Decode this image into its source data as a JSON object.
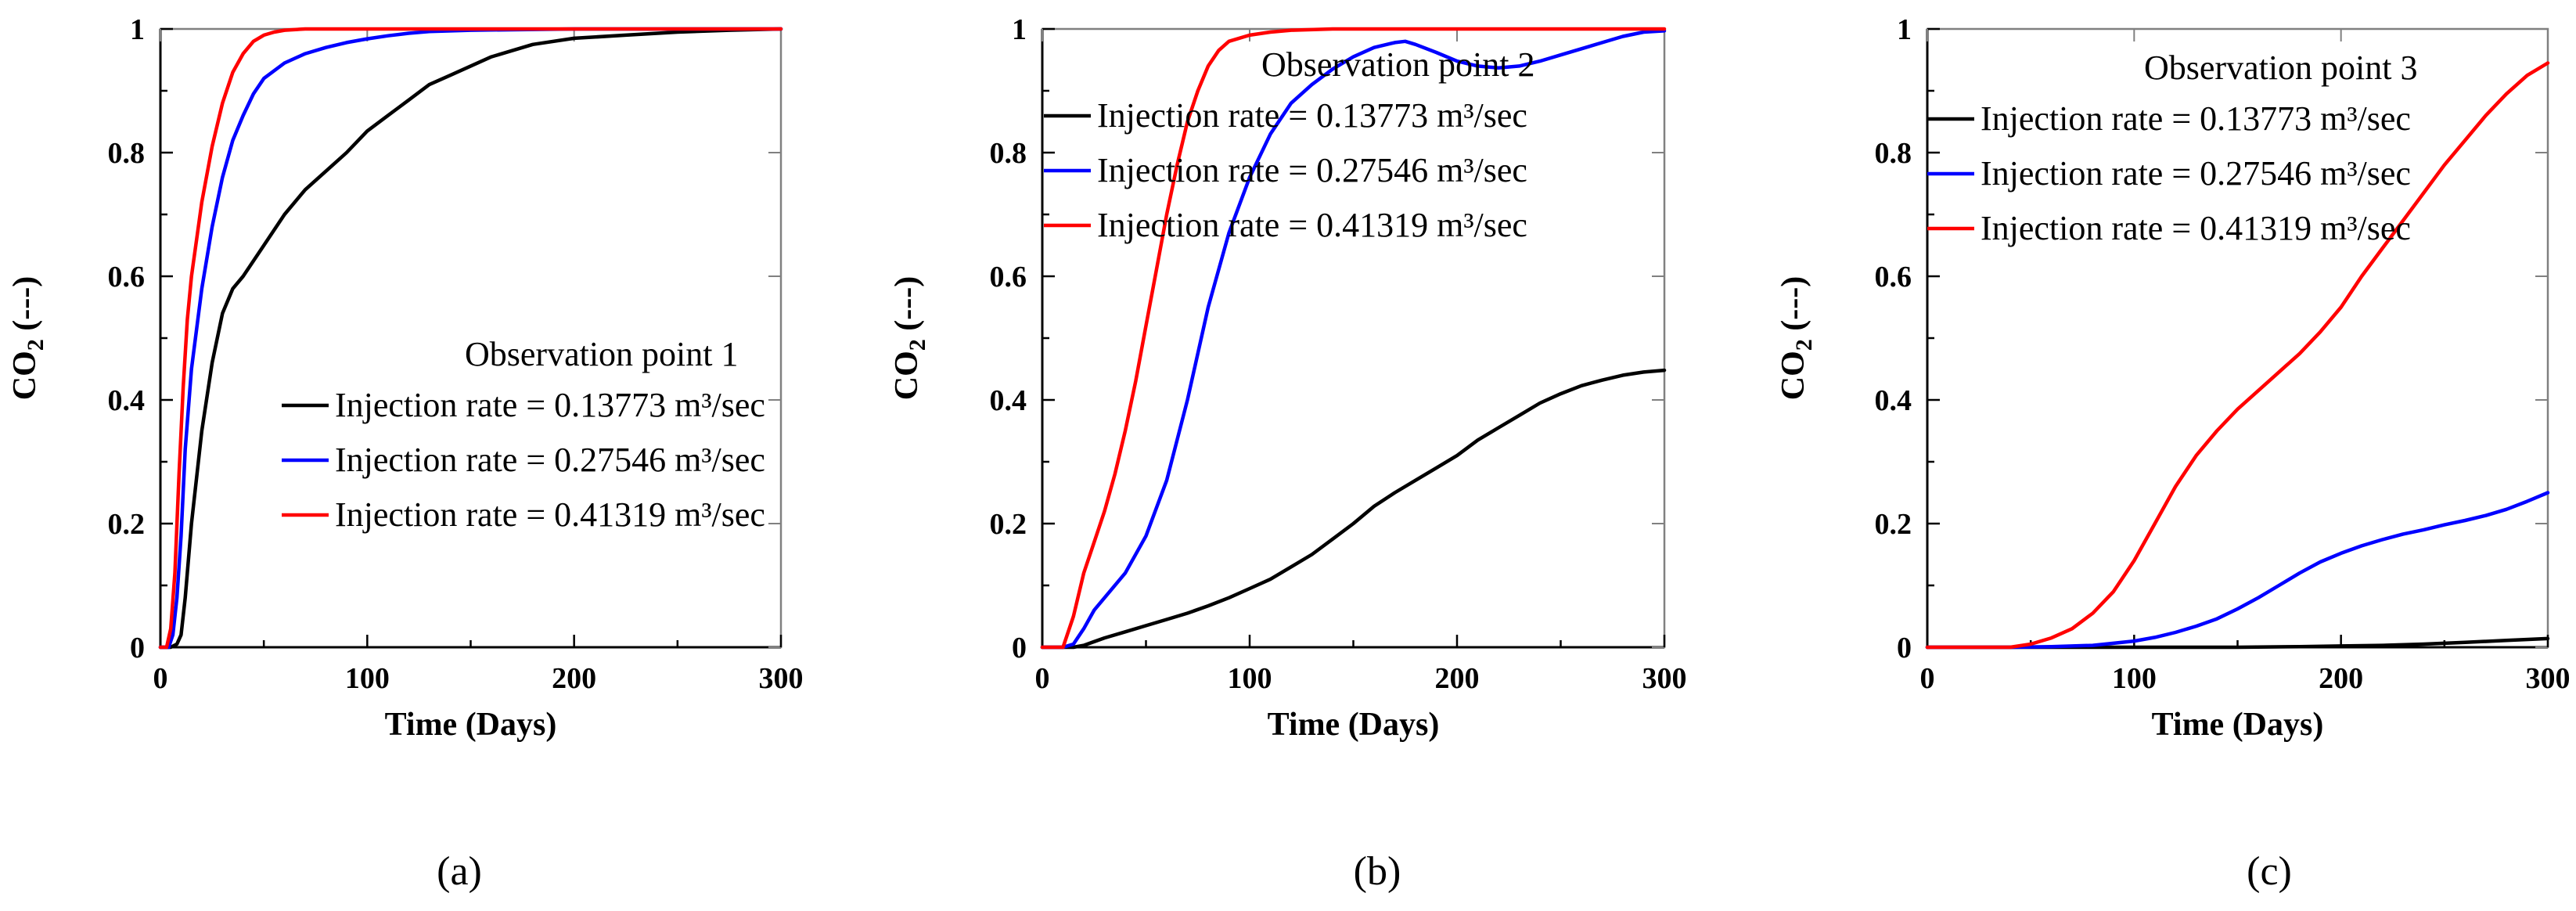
{
  "figure": {
    "captions": [
      "(a)",
      "(b)",
      "(c)"
    ]
  },
  "colors": {
    "low": "#000000",
    "mid": "#0000ff",
    "high": "#ff0000"
  },
  "chart_data": [
    {
      "type": "line",
      "panel": "a",
      "xlabel": "Time (Days)",
      "ylabel_main": "CO",
      "ylabel_sub": "2",
      "ylabel_suffix": " (---)",
      "xlim": [
        0,
        300
      ],
      "ylim": [
        0,
        1
      ],
      "xticks": [
        0,
        100,
        200,
        300
      ],
      "xtick_labels": [
        "0",
        "100",
        "200",
        "300"
      ],
      "yticks": [
        0,
        0.2,
        0.4,
        0.6,
        0.8,
        1
      ],
      "ytick_labels": [
        "0",
        "0.2",
        "0.4",
        "0.6",
        "0.8",
        "1"
      ],
      "legend": {
        "title": "Observation point 1",
        "placement": "center-right",
        "entries": [
          "Injection rate = 0.13773 m³/sec",
          "Injection rate = 0.27546 m³/sec",
          "Injection rate = 0.41319 m³/sec"
        ]
      },
      "series": [
        {
          "name": "Injection rate = 0.13773 m³/sec",
          "color": "#000000",
          "x": [
            0,
            5,
            8,
            10,
            12,
            15,
            20,
            25,
            30,
            35,
            40,
            50,
            60,
            70,
            80,
            90,
            100,
            110,
            120,
            130,
            140,
            150,
            160,
            180,
            200,
            225,
            250,
            275,
            300
          ],
          "y": [
            0,
            0,
            0.005,
            0.02,
            0.08,
            0.2,
            0.35,
            0.46,
            0.54,
            0.58,
            0.6,
            0.65,
            0.7,
            0.74,
            0.77,
            0.8,
            0.835,
            0.86,
            0.885,
            0.91,
            0.925,
            0.94,
            0.955,
            0.975,
            0.985,
            0.99,
            0.995,
            0.998,
            1.0
          ]
        },
        {
          "name": "Injection rate = 0.27546 m³/sec",
          "color": "#0000ff",
          "x": [
            0,
            4,
            6,
            8,
            10,
            12,
            15,
            20,
            25,
            30,
            35,
            40,
            45,
            50,
            60,
            70,
            80,
            90,
            100,
            110,
            120,
            130,
            150,
            200,
            300
          ],
          "y": [
            0,
            0,
            0.02,
            0.08,
            0.18,
            0.32,
            0.45,
            0.58,
            0.68,
            0.76,
            0.82,
            0.86,
            0.895,
            0.92,
            0.945,
            0.96,
            0.97,
            0.978,
            0.984,
            0.989,
            0.993,
            0.996,
            0.998,
            1.0,
            1.0
          ]
        },
        {
          "name": "Injection rate = 0.41319 m³/sec",
          "color": "#ff0000",
          "x": [
            0,
            3,
            5,
            7,
            9,
            11,
            13,
            15,
            20,
            25,
            30,
            35,
            40,
            45,
            50,
            55,
            60,
            70,
            80,
            100,
            150,
            300
          ],
          "y": [
            0,
            0,
            0.03,
            0.12,
            0.28,
            0.42,
            0.53,
            0.6,
            0.72,
            0.81,
            0.88,
            0.93,
            0.96,
            0.98,
            0.99,
            0.995,
            0.998,
            1.0,
            1.0,
            1.0,
            1.0,
            1.0
          ]
        }
      ]
    },
    {
      "type": "line",
      "panel": "b",
      "xlabel": "Time (Days)",
      "ylabel_main": "CO",
      "ylabel_sub": "2",
      "ylabel_suffix": " (---)",
      "xlim": [
        0,
        300
      ],
      "ylim": [
        0,
        1
      ],
      "xticks": [
        0,
        100,
        200,
        300
      ],
      "xtick_labels": [
        "0",
        "100",
        "200",
        "300"
      ],
      "yticks": [
        0,
        0.2,
        0.4,
        0.6,
        0.8,
        1
      ],
      "ytick_labels": [
        "0",
        "0.2",
        "0.4",
        "0.6",
        "0.8",
        "1"
      ],
      "legend": {
        "title": "Observation point 2",
        "placement": "top-right",
        "entries": [
          "Injection rate = 0.13773 m³/sec",
          "Injection rate = 0.27546 m³/sec",
          "Injection rate = 0.41319 m³/sec"
        ]
      },
      "series": [
        {
          "name": "Injection rate = 0.13773 m³/sec",
          "color": "#000000",
          "x": [
            0,
            10,
            15,
            20,
            30,
            40,
            50,
            60,
            70,
            80,
            90,
            100,
            110,
            120,
            130,
            140,
            150,
            160,
            170,
            180,
            190,
            200,
            210,
            220,
            230,
            240,
            250,
            260,
            270,
            280,
            290,
            300
          ],
          "y": [
            0,
            0,
            0,
            0.003,
            0.015,
            0.025,
            0.035,
            0.045,
            0.055,
            0.067,
            0.08,
            0.095,
            0.11,
            0.13,
            0.15,
            0.175,
            0.2,
            0.228,
            0.25,
            0.27,
            0.29,
            0.31,
            0.335,
            0.355,
            0.375,
            0.395,
            0.41,
            0.423,
            0.432,
            0.44,
            0.445,
            0.448
          ]
        },
        {
          "name": "Injection rate = 0.27546 m³/sec",
          "color": "#0000ff",
          "x": [
            0,
            10,
            15,
            20,
            25,
            30,
            40,
            50,
            60,
            70,
            80,
            90,
            100,
            110,
            120,
            130,
            140,
            150,
            160,
            170,
            175,
            180,
            190,
            200,
            210,
            220,
            230,
            240,
            250,
            260,
            270,
            280,
            290,
            300
          ],
          "y": [
            0,
            0,
            0.005,
            0.03,
            0.06,
            0.08,
            0.12,
            0.18,
            0.27,
            0.4,
            0.55,
            0.67,
            0.76,
            0.83,
            0.88,
            0.91,
            0.935,
            0.955,
            0.97,
            0.978,
            0.98,
            0.975,
            0.962,
            0.948,
            0.94,
            0.937,
            0.94,
            0.948,
            0.958,
            0.968,
            0.978,
            0.988,
            0.995,
            0.997
          ]
        },
        {
          "name": "Injection rate = 0.41319 m³/sec",
          "color": "#ff0000",
          "x": [
            0,
            10,
            15,
            20,
            25,
            30,
            35,
            40,
            45,
            50,
            55,
            60,
            65,
            70,
            75,
            80,
            85,
            90,
            100,
            110,
            120,
            140,
            160,
            200,
            300
          ],
          "y": [
            0,
            0,
            0.05,
            0.12,
            0.17,
            0.22,
            0.28,
            0.35,
            0.43,
            0.52,
            0.61,
            0.7,
            0.78,
            0.85,
            0.9,
            0.94,
            0.965,
            0.98,
            0.99,
            0.995,
            0.998,
            1.0,
            1.0,
            1.0,
            1.0
          ]
        }
      ]
    },
    {
      "type": "line",
      "panel": "c",
      "xlabel": "Time (Days)",
      "ylabel_main": "CO",
      "ylabel_sub": "2",
      "ylabel_suffix": " (---)",
      "xlim": [
        0,
        300
      ],
      "ylim": [
        0,
        1
      ],
      "xticks": [
        0,
        100,
        200,
        300
      ],
      "xtick_labels": [
        "0",
        "100",
        "200",
        "300"
      ],
      "yticks": [
        0,
        0.2,
        0.4,
        0.6,
        0.8,
        1
      ],
      "ytick_labels": [
        "0",
        "0.2",
        "0.4",
        "0.6",
        "0.8",
        "1"
      ],
      "legend": {
        "title": "Observation point 3",
        "placement": "top-right",
        "entries": [
          "Injection rate = 0.13773 m³/sec",
          "Injection rate = 0.27546 m³/sec",
          "Injection rate = 0.41319 m³/sec"
        ]
      },
      "series": [
        {
          "name": "Injection rate = 0.13773 m³/sec",
          "color": "#000000",
          "x": [
            0,
            100,
            150,
            180,
            200,
            220,
            240,
            260,
            280,
            300
          ],
          "y": [
            0,
            0,
            0,
            0.001,
            0.002,
            0.003,
            0.005,
            0.008,
            0.011,
            0.014
          ]
        },
        {
          "name": "Injection rate = 0.27546 m³/sec",
          "color": "#0000ff",
          "x": [
            0,
            40,
            60,
            80,
            100,
            110,
            120,
            130,
            140,
            150,
            160,
            170,
            180,
            190,
            200,
            210,
            220,
            230,
            240,
            250,
            260,
            270,
            280,
            290,
            300
          ],
          "y": [
            0,
            0,
            0.001,
            0.003,
            0.01,
            0.016,
            0.024,
            0.034,
            0.046,
            0.062,
            0.08,
            0.1,
            0.12,
            0.138,
            0.152,
            0.164,
            0.174,
            0.183,
            0.19,
            0.198,
            0.205,
            0.213,
            0.223,
            0.236,
            0.25
          ]
        },
        {
          "name": "Injection rate = 0.41319 m³/sec",
          "color": "#ff0000",
          "x": [
            0,
            40,
            50,
            60,
            70,
            80,
            90,
            100,
            110,
            120,
            130,
            140,
            150,
            160,
            170,
            180,
            190,
            200,
            210,
            220,
            230,
            240,
            250,
            260,
            270,
            280,
            290,
            300
          ],
          "y": [
            0,
            0,
            0.005,
            0.015,
            0.03,
            0.055,
            0.09,
            0.14,
            0.2,
            0.26,
            0.31,
            0.35,
            0.385,
            0.415,
            0.445,
            0.475,
            0.51,
            0.55,
            0.6,
            0.645,
            0.69,
            0.735,
            0.78,
            0.82,
            0.86,
            0.895,
            0.925,
            0.945
          ]
        }
      ]
    }
  ]
}
